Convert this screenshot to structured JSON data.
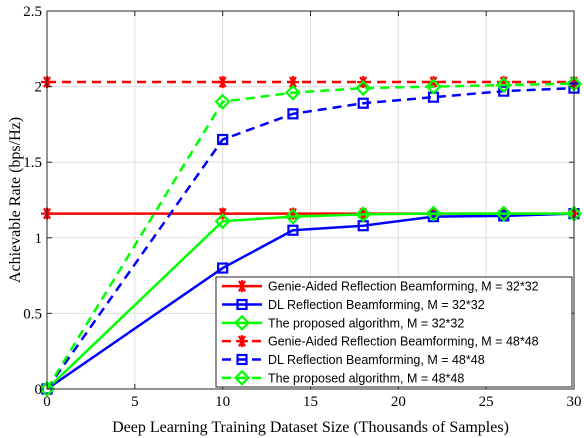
{
  "chart_data": {
    "type": "line",
    "xlabel": "Deep Learning Training Dataset Size (Thousands of Samples)",
    "ylabel": "Achievable Rate (bps/Hz)",
    "xlim": [
      0,
      30
    ],
    "ylim": [
      0,
      2.5
    ],
    "xticks": [
      0,
      5,
      10,
      15,
      20,
      25,
      30
    ],
    "yticks": [
      0,
      0.5,
      1,
      1.5,
      2,
      2.5
    ],
    "xtick_labels": [
      "0",
      "5",
      "10",
      "15",
      "20",
      "25",
      "30"
    ],
    "ytick_labels": [
      "0",
      "0.5",
      "1",
      "1.5",
      "2",
      "2.5"
    ],
    "grid": true,
    "legend_position": "bottom-right",
    "series": [
      {
        "name": "Genie-Aided Reflection Beamforming, M = 32*32",
        "color": "#ff0000",
        "dash": "solid",
        "marker": "asterisk",
        "x": [
          0,
          10,
          14,
          18,
          22,
          26,
          30
        ],
        "y": [
          1.16,
          1.16,
          1.16,
          1.16,
          1.16,
          1.16,
          1.16
        ]
      },
      {
        "name": "DL Reflection Beamforming, M = 32*32",
        "color": "#0000ff",
        "dash": "solid",
        "marker": "square",
        "x": [
          0,
          10,
          14,
          18,
          22,
          26,
          30
        ],
        "y": [
          0.0,
          0.8,
          1.05,
          1.08,
          1.14,
          1.145,
          1.16
        ]
      },
      {
        "name": "The proposed algorithm, M = 32*32",
        "color": "#00ff00",
        "dash": "solid",
        "marker": "diamond",
        "x": [
          0,
          10,
          14,
          18,
          22,
          26,
          30
        ],
        "y": [
          0.0,
          1.11,
          1.14,
          1.155,
          1.16,
          1.16,
          1.16
        ]
      },
      {
        "name": "Genie-Aided Reflection Beamforming, M = 48*48",
        "color": "#ff0000",
        "dash": "dashed",
        "marker": "asterisk",
        "x": [
          0,
          10,
          14,
          18,
          22,
          26,
          30
        ],
        "y": [
          2.03,
          2.03,
          2.03,
          2.03,
          2.03,
          2.03,
          2.03
        ]
      },
      {
        "name": "DL Reflection Beamforming, M = 48*48",
        "color": "#0000ff",
        "dash": "dashed",
        "marker": "square",
        "x": [
          0,
          10,
          14,
          18,
          22,
          26,
          30
        ],
        "y": [
          0.0,
          1.65,
          1.82,
          1.89,
          1.93,
          1.97,
          1.99
        ]
      },
      {
        "name": "The proposed algorithm, M = 48*48",
        "color": "#00ff00",
        "dash": "dashed",
        "marker": "diamond",
        "x": [
          0,
          10,
          14,
          18,
          22,
          26,
          30
        ],
        "y": [
          0.0,
          1.9,
          1.96,
          1.99,
          2.0,
          2.01,
          2.02
        ]
      }
    ]
  }
}
